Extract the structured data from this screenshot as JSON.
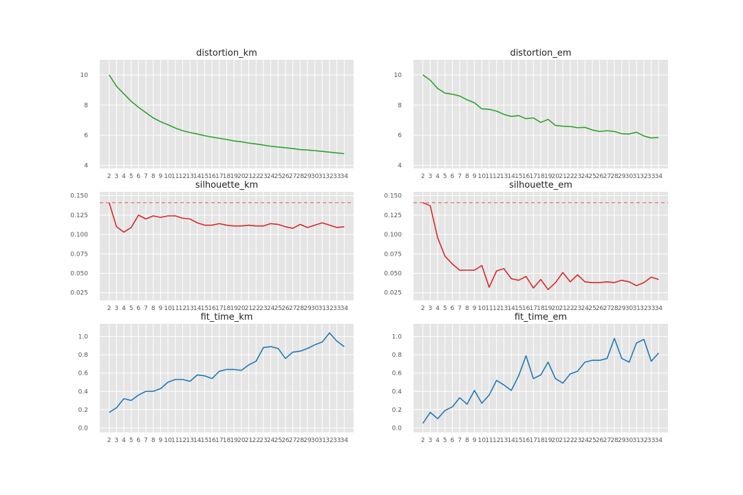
{
  "chart_data": [
    {
      "id": "distortion_km",
      "type": "line",
      "title": "distortion_km",
      "x": [
        2,
        3,
        4,
        5,
        6,
        7,
        8,
        9,
        10,
        11,
        12,
        13,
        14,
        15,
        16,
        17,
        18,
        19,
        20,
        21,
        22,
        23,
        24,
        25,
        26,
        27,
        28,
        29,
        30,
        31,
        32,
        33,
        34
      ],
      "series": [
        {
          "values": [
            10.0,
            9.25,
            8.75,
            8.25,
            7.85,
            7.5,
            7.15,
            6.9,
            6.7,
            6.48,
            6.3,
            6.18,
            6.08,
            5.97,
            5.88,
            5.8,
            5.72,
            5.62,
            5.57,
            5.48,
            5.42,
            5.35,
            5.27,
            5.22,
            5.17,
            5.12,
            5.05,
            5.02,
            4.98,
            4.93,
            4.88,
            4.83,
            4.78
          ],
          "color": "#2ca02c"
        }
      ],
      "ylim": [
        3.8,
        11.0
      ],
      "yticks": [
        4,
        6,
        8,
        10
      ],
      "yformat": 0,
      "grid": true,
      "background": "#e5e5e5"
    },
    {
      "id": "distortion_em",
      "type": "line",
      "title": "distortion_em",
      "x": [
        2,
        3,
        4,
        5,
        6,
        7,
        8,
        9,
        10,
        11,
        12,
        13,
        14,
        15,
        16,
        17,
        18,
        19,
        20,
        21,
        22,
        23,
        24,
        25,
        26,
        27,
        28,
        29,
        30,
        31,
        32,
        33,
        34
      ],
      "series": [
        {
          "values": [
            10.0,
            9.65,
            9.1,
            8.8,
            8.72,
            8.6,
            8.35,
            8.15,
            7.75,
            7.72,
            7.6,
            7.38,
            7.25,
            7.3,
            7.1,
            7.15,
            6.85,
            7.05,
            6.65,
            6.6,
            6.58,
            6.5,
            6.52,
            6.35,
            6.25,
            6.3,
            6.25,
            6.1,
            6.08,
            6.2,
            5.95,
            5.82,
            5.85
          ],
          "color": "#2ca02c"
        }
      ],
      "ylim": [
        3.8,
        11.0
      ],
      "yticks": [
        4,
        6,
        8,
        10
      ],
      "yformat": 0,
      "grid": true,
      "background": "#e5e5e5"
    },
    {
      "id": "silhouette_km",
      "type": "line",
      "title": "silhouette_km",
      "x": [
        2,
        3,
        4,
        5,
        6,
        7,
        8,
        9,
        10,
        11,
        12,
        13,
        14,
        15,
        16,
        17,
        18,
        19,
        20,
        21,
        22,
        23,
        24,
        25,
        26,
        27,
        28,
        29,
        30,
        31,
        32,
        33,
        34
      ],
      "series": [
        {
          "values": [
            0.141,
            0.11,
            0.103,
            0.109,
            0.125,
            0.12,
            0.124,
            0.122,
            0.124,
            0.124,
            0.121,
            0.12,
            0.115,
            0.112,
            0.112,
            0.114,
            0.112,
            0.111,
            0.111,
            0.112,
            0.111,
            0.111,
            0.114,
            0.113,
            0.11,
            0.108,
            0.113,
            0.109,
            0.112,
            0.115,
            0.112,
            0.109,
            0.11
          ],
          "color": "#d62728"
        }
      ],
      "hline": {
        "value": 0.141,
        "color": "#e06666",
        "style": "dashed"
      },
      "ylim": [
        0.015,
        0.155
      ],
      "yticks": [
        0.025,
        0.05,
        0.075,
        0.1,
        0.125,
        0.15
      ],
      "yformat": 3,
      "grid": true,
      "background": "#e5e5e5"
    },
    {
      "id": "silhouette_em",
      "type": "line",
      "title": "silhouette_em",
      "x": [
        2,
        3,
        4,
        5,
        6,
        7,
        8,
        9,
        10,
        11,
        12,
        13,
        14,
        15,
        16,
        17,
        18,
        19,
        20,
        21,
        22,
        23,
        24,
        25,
        26,
        27,
        28,
        29,
        30,
        31,
        32,
        33,
        34
      ],
      "series": [
        {
          "values": [
            0.141,
            0.137,
            0.096,
            0.072,
            0.062,
            0.054,
            0.054,
            0.054,
            0.06,
            0.032,
            0.053,
            0.056,
            0.043,
            0.041,
            0.046,
            0.031,
            0.042,
            0.029,
            0.038,
            0.051,
            0.039,
            0.048,
            0.039,
            0.038,
            0.038,
            0.039,
            0.038,
            0.041,
            0.039,
            0.034,
            0.038,
            0.045,
            0.042
          ],
          "color": "#d62728"
        }
      ],
      "hline": {
        "value": 0.141,
        "color": "#e06666",
        "style": "dashed"
      },
      "ylim": [
        0.015,
        0.155
      ],
      "yticks": [
        0.025,
        0.05,
        0.075,
        0.1,
        0.125,
        0.15
      ],
      "yformat": 3,
      "grid": true,
      "background": "#e5e5e5"
    },
    {
      "id": "fit_time_km",
      "type": "line",
      "title": "fit_time_km",
      "x": [
        2,
        3,
        4,
        5,
        6,
        7,
        8,
        9,
        10,
        11,
        12,
        13,
        14,
        15,
        16,
        17,
        18,
        19,
        20,
        21,
        22,
        23,
        24,
        25,
        26,
        27,
        28,
        29,
        30,
        31,
        32,
        33,
        34
      ],
      "series": [
        {
          "values": [
            0.17,
            0.22,
            0.32,
            0.3,
            0.36,
            0.4,
            0.4,
            0.43,
            0.5,
            0.53,
            0.53,
            0.51,
            0.58,
            0.57,
            0.54,
            0.62,
            0.64,
            0.64,
            0.63,
            0.69,
            0.73,
            0.88,
            0.89,
            0.87,
            0.76,
            0.83,
            0.84,
            0.87,
            0.91,
            0.94,
            1.04,
            0.95,
            0.89
          ],
          "color": "#1f77b4"
        }
      ],
      "ylim": [
        -0.05,
        1.14
      ],
      "yticks": [
        0,
        0.2,
        0.4,
        0.6,
        0.8,
        1
      ],
      "yformat": 1,
      "grid": true,
      "background": "#e5e5e5"
    },
    {
      "id": "fit_time_em",
      "type": "line",
      "title": "fit_time_em",
      "x": [
        2,
        3,
        4,
        5,
        6,
        7,
        8,
        9,
        10,
        11,
        12,
        13,
        14,
        15,
        16,
        17,
        18,
        19,
        20,
        21,
        22,
        23,
        24,
        25,
        26,
        27,
        28,
        29,
        30,
        31,
        32,
        33,
        34
      ],
      "series": [
        {
          "values": [
            0.05,
            0.17,
            0.1,
            0.19,
            0.23,
            0.33,
            0.26,
            0.41,
            0.27,
            0.36,
            0.52,
            0.47,
            0.41,
            0.57,
            0.79,
            0.54,
            0.58,
            0.72,
            0.54,
            0.49,
            0.59,
            0.62,
            0.72,
            0.74,
            0.74,
            0.76,
            0.98,
            0.76,
            0.72,
            0.93,
            0.97,
            0.73,
            0.82
          ],
          "color": "#1f77b4"
        }
      ],
      "ylim": [
        -0.05,
        1.14
      ],
      "yticks": [
        0,
        0.2,
        0.4,
        0.6,
        0.8,
        1
      ],
      "yformat": 1,
      "grid": true,
      "background": "#e5e5e5"
    }
  ]
}
